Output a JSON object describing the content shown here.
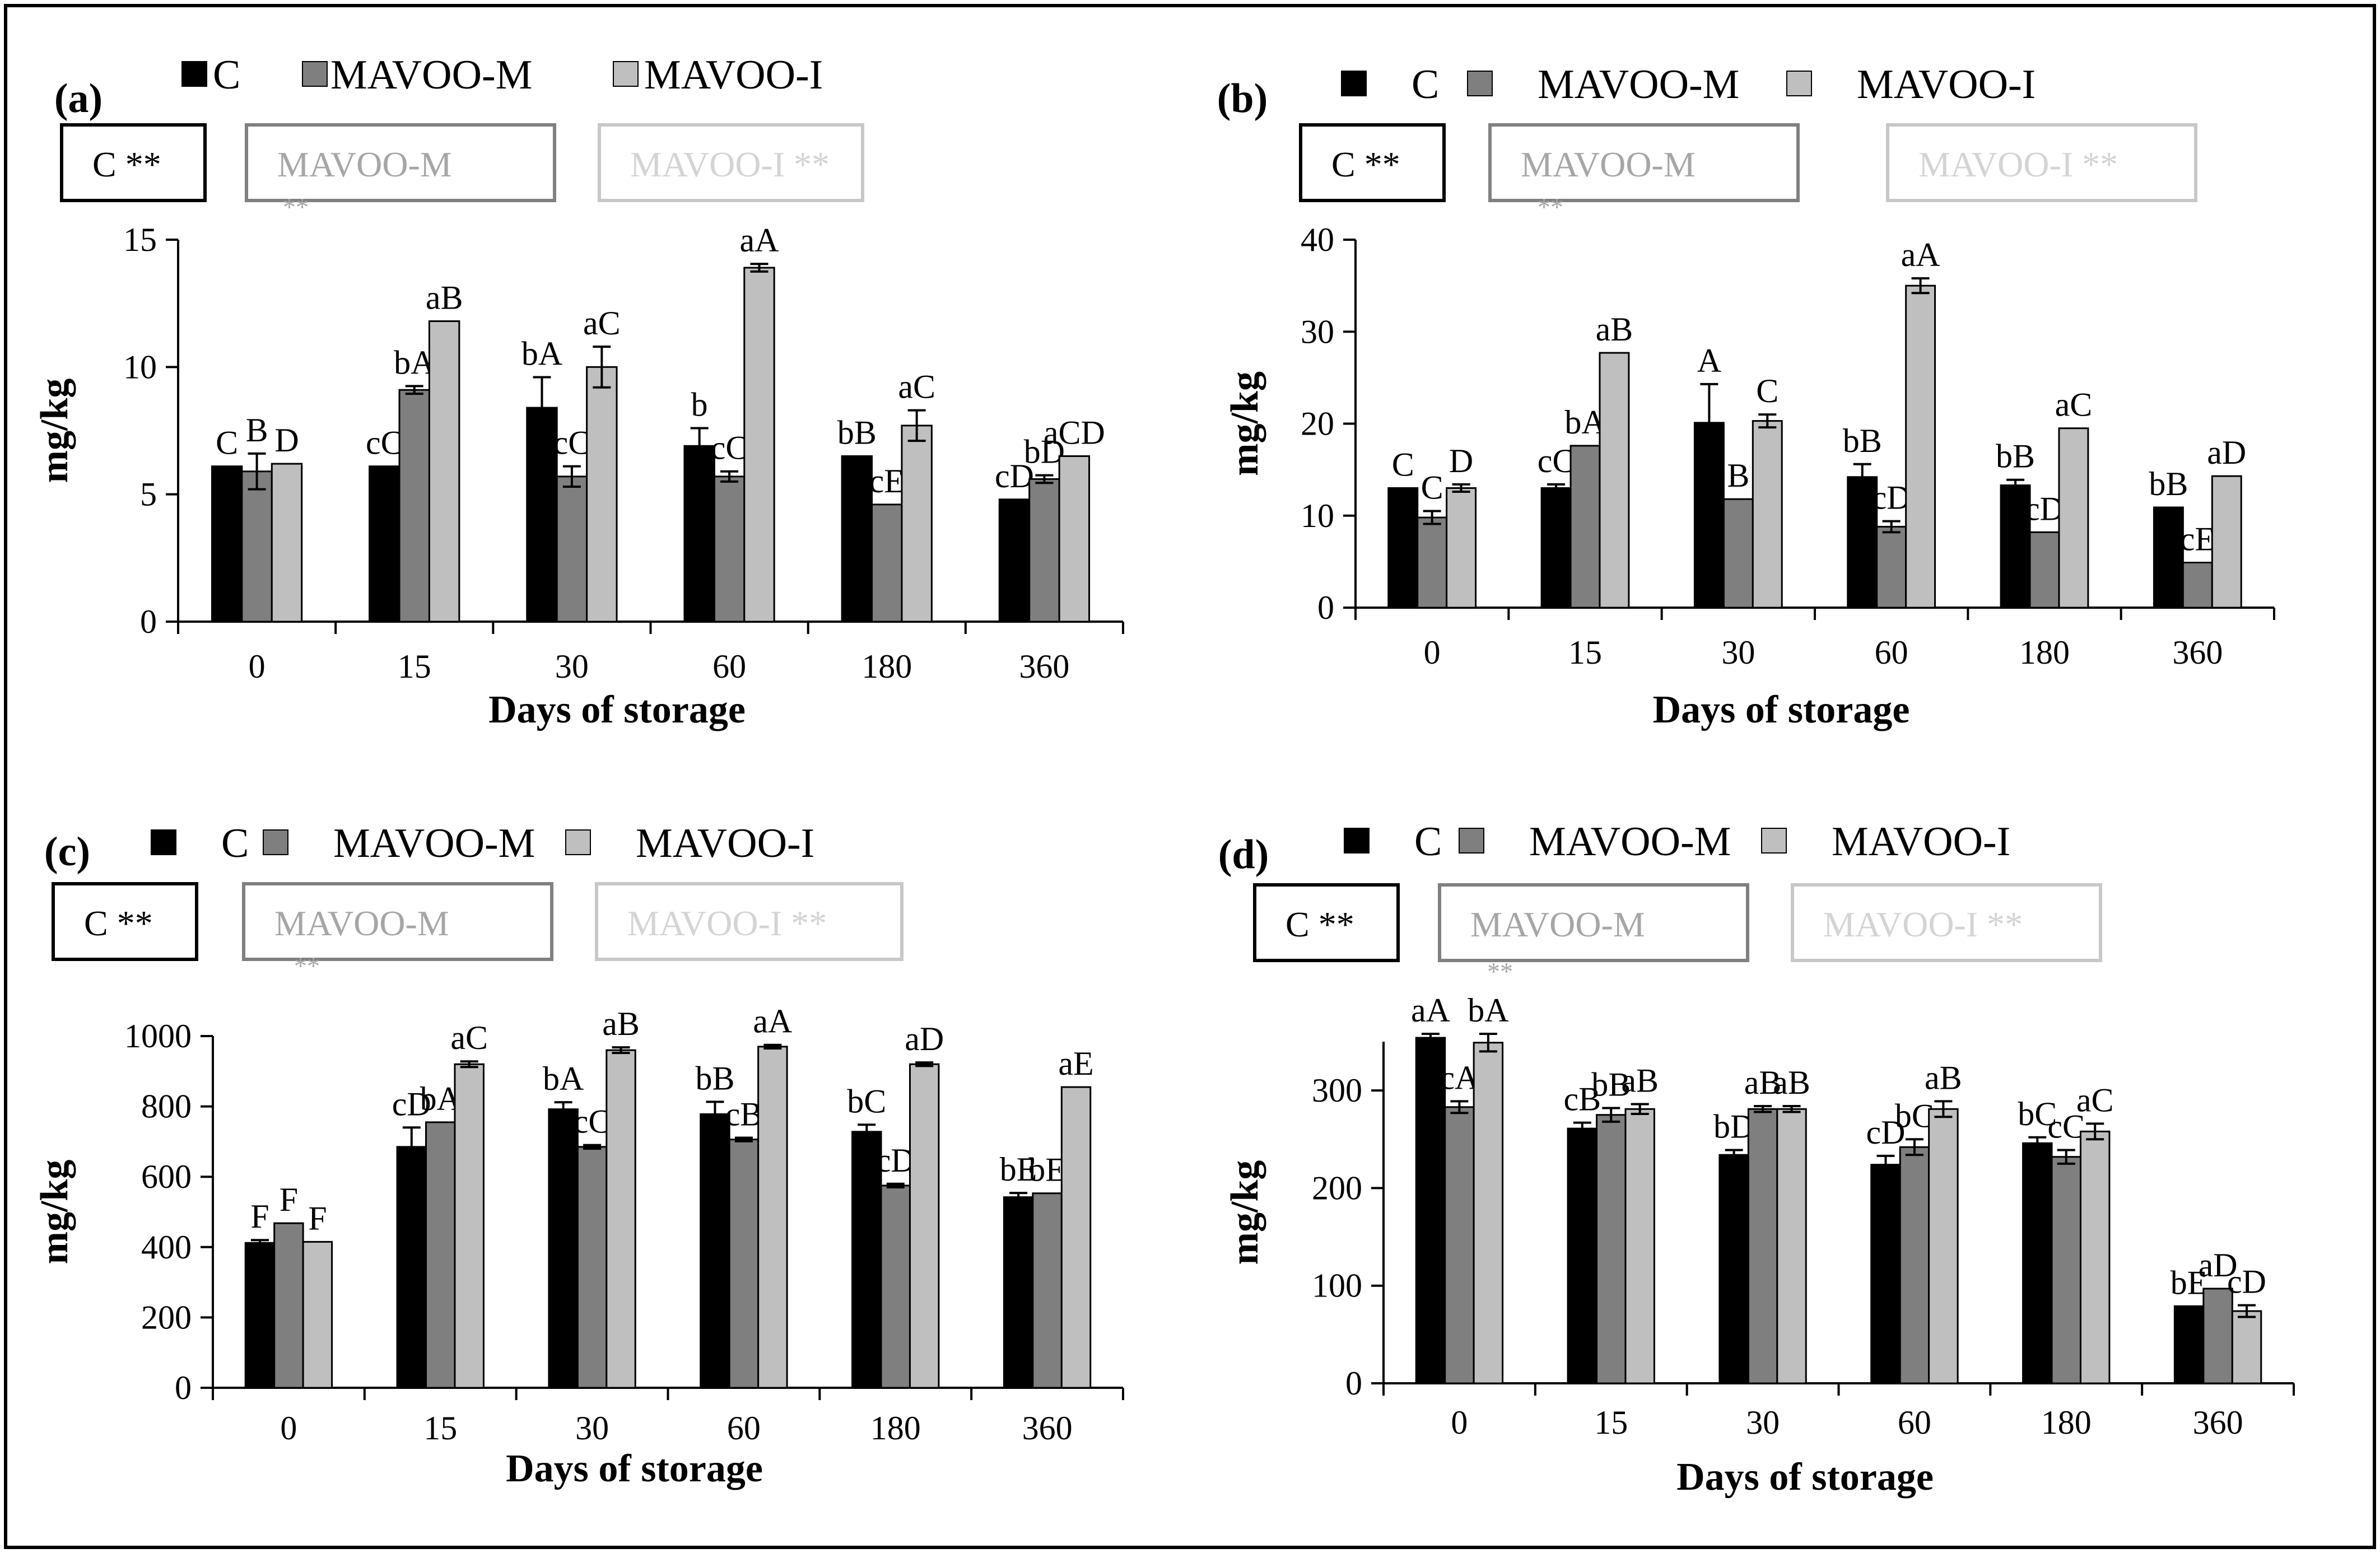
{
  "figure": {
    "series_names": [
      "C",
      "MAVOO-M",
      "MAVOO-I"
    ],
    "series_colors": [
      "#000000",
      "#7f7f7f",
      "#bfbfbf"
    ],
    "error_bar_color": "#000000"
  },
  "chart_data": [
    {
      "type": "bar",
      "panel_label": "(a)",
      "title": "",
      "categories": [
        "0",
        "15",
        "30",
        "60",
        "180",
        "360"
      ],
      "xlabel": "Days of storage",
      "ylabel": "mg/kg",
      "ylim": [
        0,
        15
      ],
      "yticks": [
        "0",
        "5",
        "10",
        "15"
      ],
      "legend": [
        "C",
        "MAVOO-M",
        "MAVOO-I"
      ],
      "significance": {
        "C": "C **",
        "MAVOO-M": "MAVOO-M",
        "MAVOO-M_sub": "**",
        "MAVOO-I": "MAVOO-I **"
      },
      "series": [
        {
          "name": "C",
          "values": [
            6.1,
            6.1,
            8.4,
            6.9,
            6.5,
            4.8
          ],
          "errors": [
            0,
            0,
            1.2,
            0.7,
            0,
            0
          ],
          "labels": [
            "C",
            "cC",
            "bA",
            "b",
            "bB",
            "cD"
          ]
        },
        {
          "name": "MAVOO-M",
          "values": [
            5.9,
            9.1,
            5.7,
            5.7,
            4.6,
            5.6
          ],
          "errors": [
            0.7,
            0.15,
            0.4,
            0.2,
            0,
            0.15
          ],
          "labels": [
            "B",
            "bA",
            "cC",
            "cC",
            "cE",
            "bD"
          ]
        },
        {
          "name": "MAVOO-I",
          "values": [
            6.2,
            11.8,
            10.0,
            13.9,
            7.7,
            6.5
          ],
          "errors": [
            0,
            0,
            0.8,
            0.15,
            0.6,
            0
          ],
          "labels": [
            "D",
            "aB",
            "aC",
            "aA",
            "aC",
            "aCD"
          ]
        }
      ]
    },
    {
      "type": "bar",
      "panel_label": "(b)",
      "title": "",
      "categories": [
        "0",
        "15",
        "30",
        "60",
        "180",
        "360"
      ],
      "xlabel": "Days of storage",
      "ylabel": "mg/kg",
      "ylim": [
        0,
        40
      ],
      "yticks": [
        "0",
        "10",
        "20",
        "30",
        "40"
      ],
      "legend": [
        "C",
        "MAVOO-M",
        "MAVOO-I"
      ],
      "significance": {
        "C": "C **",
        "MAVOO-M": "MAVOO-M",
        "MAVOO-M_sub": "**",
        "MAVOO-I": "MAVOO-I **"
      },
      "series": [
        {
          "name": "C",
          "values": [
            13.0,
            13.0,
            20.1,
            14.2,
            13.3,
            10.9
          ],
          "errors": [
            0,
            0.4,
            4.2,
            1.4,
            0.6,
            0
          ],
          "labels": [
            "C",
            "cC",
            "A",
            "bB",
            "bB",
            "bB"
          ]
        },
        {
          "name": "MAVOO-M",
          "values": [
            9.8,
            17.6,
            11.8,
            8.8,
            8.2,
            4.9
          ],
          "errors": [
            0.7,
            0,
            0,
            0.6,
            0,
            0
          ],
          "labels": [
            "C",
            "bA",
            "B",
            "cD",
            "cD",
            "cE"
          ]
        },
        {
          "name": "MAVOO-I",
          "values": [
            13.0,
            27.7,
            20.3,
            35.0,
            19.5,
            14.3
          ],
          "errors": [
            0.4,
            0,
            0.7,
            0.8,
            0,
            0
          ],
          "labels": [
            "D",
            "aB",
            "C",
            "aA",
            "aC",
            "aD"
          ]
        }
      ]
    },
    {
      "type": "bar",
      "panel_label": "(c)",
      "title": "",
      "categories": [
        "0",
        "15",
        "30",
        "60",
        "180",
        "360"
      ],
      "xlabel": "Days of storage",
      "ylabel": "mg/kg",
      "ylim": [
        0,
        1000
      ],
      "yticks": [
        "0",
        "200",
        "400",
        "600",
        "800",
        "1000"
      ],
      "legend": [
        "C",
        "MAVOO-M",
        "MAVOO-I"
      ],
      "significance": {
        "C": "C **",
        "MAVOO-M": "MAVOO-M",
        "MAVOO-M_sub": "**",
        "MAVOO-I": "MAVOO-I **"
      },
      "series": [
        {
          "name": "C",
          "values": [
            412,
            685,
            792,
            778,
            728,
            542
          ],
          "errors": [
            8,
            55,
            20,
            35,
            20,
            12
          ],
          "labels": [
            "F",
            "cD",
            "bA",
            "bB",
            "bC",
            "bE"
          ]
        },
        {
          "name": "MAVOO-M",
          "values": [
            468,
            755,
            685,
            706,
            575,
            553
          ],
          "errors": [
            0,
            0,
            5,
            5,
            5,
            0
          ],
          "labels": [
            "F",
            "bA",
            "cC",
            "cB",
            "cD",
            "bE"
          ]
        },
        {
          "name": "MAVOO-I",
          "values": [
            415,
            920,
            960,
            970,
            920,
            855
          ],
          "errors": [
            0,
            8,
            8,
            5,
            5,
            0
          ],
          "labels": [
            "F",
            "aC",
            "aB",
            "aA",
            "aD",
            "aE"
          ]
        }
      ]
    },
    {
      "type": "bar",
      "panel_label": "(d)",
      "title": "",
      "categories": [
        "0",
        "15",
        "30",
        "60",
        "180",
        "360"
      ],
      "xlabel": "Days of storage",
      "ylabel": "mg/kg",
      "ylim": [
        0,
        350
      ],
      "yticks": [
        "0",
        "100",
        "200",
        "300"
      ],
      "legend": [
        "C",
        "MAVOO-M",
        "MAVOO-I"
      ],
      "significance": {
        "C": "C **",
        "MAVOO-M": "MAVOO-M",
        "MAVOO-M_sub": "**",
        "MAVOO-I": "MAVOO-I **"
      },
      "series": [
        {
          "name": "C",
          "values": [
            354,
            261,
            234,
            224,
            246,
            79
          ],
          "errors": [
            4,
            6,
            5,
            9,
            6,
            0
          ],
          "labels": [
            "aA",
            "cB",
            "bD",
            "cD",
            "bC",
            "bE"
          ]
        },
        {
          "name": "MAVOO-M",
          "values": [
            283,
            275,
            281,
            242,
            232,
            97
          ],
          "errors": [
            6,
            7,
            3,
            8,
            7,
            0
          ],
          "labels": [
            "cA",
            "bB",
            "aB",
            "bC",
            "cC",
            "aD"
          ]
        },
        {
          "name": "MAVOO-I",
          "values": [
            349,
            281,
            281,
            281,
            258,
            74
          ],
          "errors": [
            9,
            5,
            3,
            8,
            8,
            6
          ],
          "labels": [
            "bA",
            "aB",
            "aB",
            "aB",
            "aC",
            "cD"
          ]
        }
      ]
    }
  ]
}
